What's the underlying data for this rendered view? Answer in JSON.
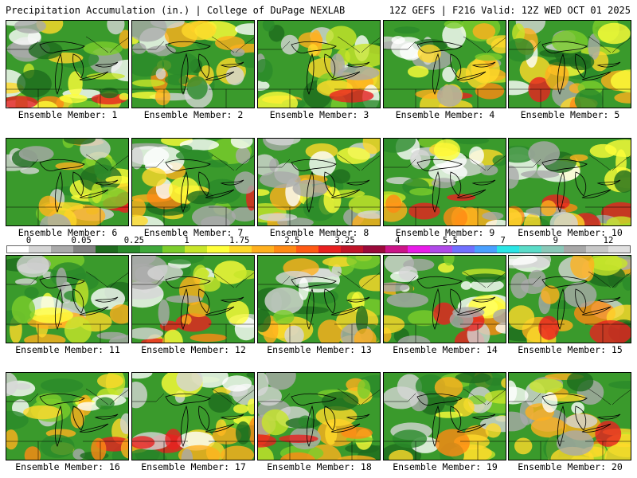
{
  "header": {
    "left": "Precipitation Accumulation (in.) | College of DuPage NEXLAB",
    "right": "12Z GEFS | F216 Valid: 12Z WED OCT 01 2025"
  },
  "member_label_prefix": "Ensemble Member: ",
  "members": [
    "1",
    "2",
    "3",
    "4",
    "5",
    "6",
    "7",
    "8",
    "9",
    "10",
    "11",
    "12",
    "13",
    "14",
    "15",
    "16",
    "17",
    "18",
    "19",
    "20"
  ],
  "colorbar": {
    "tick_labels": [
      "0",
      "0.05",
      "0.25",
      "1",
      "1.75",
      "2.5",
      "3.25",
      "4",
      "5.5",
      "7",
      "9",
      "12"
    ],
    "colors": [
      "#ffffff",
      "#d6d6d6",
      "#aaaaaa",
      "#828282",
      "#1e6b1e",
      "#2a8a2a",
      "#3fa83a",
      "#7ccd2c",
      "#c8e62a",
      "#ffff3a",
      "#ffd92a",
      "#ffb01e",
      "#ff8a14",
      "#ff5a14",
      "#e82020",
      "#c01428",
      "#9a0a3a",
      "#cc1488",
      "#e81ce8",
      "#b04ae8",
      "#7070ff",
      "#4aa0ff",
      "#2ae6e6",
      "#5adcc8",
      "#8ac8b8",
      "#a8a8a8",
      "#c8c8c8",
      "#e0e0e0"
    ]
  }
}
